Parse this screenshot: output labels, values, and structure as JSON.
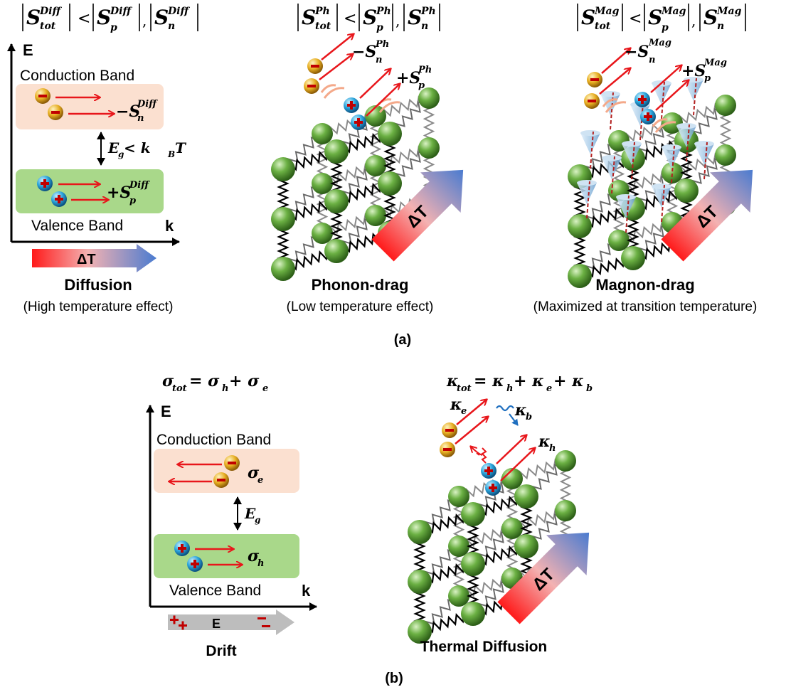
{
  "panel_a": {
    "label": "(a)",
    "diffusion": {
      "eq": {
        "abs1": "S",
        "sub1": "tot",
        "sup": "Diff",
        "rel": "<",
        "abs2": "S",
        "sub2": "p",
        "comma": ",",
        "abs3": "S",
        "sub3": "n"
      },
      "axis_y": "E",
      "axis_x": "k",
      "conduction_band": "Conduction Band",
      "valence_band": "Valence Band",
      "seebeck_n": {
        "sign": "−S",
        "sub": "n",
        "sup": "Diff"
      },
      "seebeck_p": {
        "sign": "+S",
        "sub": "p",
        "sup": "Diff"
      },
      "gap": {
        "base": "E",
        "sub": "g",
        "rel": " < k",
        "sub2": "B",
        "tail": "T"
      },
      "dt": "ΔT",
      "title": "Diffusion",
      "subtitle": "(High temperature effect)"
    },
    "phonon": {
      "eq": {
        "sup": "Ph"
      },
      "seebeck_n": {
        "sign": "−S",
        "sub": "n",
        "sup": "Ph"
      },
      "seebeck_p": {
        "sign": "+S",
        "sub": "p",
        "sup": "Ph"
      },
      "dt": "ΔT",
      "title": "Phonon-drag",
      "subtitle": "(Low temperature effect)"
    },
    "magnon": {
      "eq": {
        "sup": "Mag"
      },
      "seebeck_n": {
        "sign": "−S",
        "sub": "n",
        "sup": "Mag"
      },
      "seebeck_p": {
        "sign": "+S",
        "sub": "p",
        "sup": "Mag"
      },
      "dt": "ΔT",
      "title": "Magnon-drag",
      "subtitle": "(Maximized at transition temperature)"
    }
  },
  "panel_b": {
    "label": "(b)",
    "drift": {
      "eq": {
        "lhs": "σ",
        "lhs_sub": "tot",
        "op1": " = σ",
        "s1": "h",
        "op2": " + σ",
        "s2": "e"
      },
      "axis_y": "E",
      "axis_x": "k",
      "conduction_band": "Conduction Band",
      "valence_band": "Valence Band",
      "sigma_e": {
        "base": "σ",
        "sub": "e"
      },
      "sigma_h": {
        "base": "σ",
        "sub": "h"
      },
      "gap": {
        "base": "E",
        "sub": "g"
      },
      "field": "E",
      "title": "Drift"
    },
    "thermal": {
      "eq": {
        "lhs": "κ",
        "lhs_sub": "tot",
        "op1": " = κ",
        "s1": "h",
        "op2": " + κ",
        "s2": "e",
        "op3": " + κ",
        "s3": "b"
      },
      "kappa_e": {
        "base": "κ",
        "sub": "e"
      },
      "kappa_b": {
        "base": "κ",
        "sub": "b"
      },
      "kappa_h": {
        "base": "κ",
        "sub": "h"
      },
      "dt": "ΔT",
      "title": "Thermal Diffusion"
    }
  },
  "colors": {
    "conduction": "#fbe0d0",
    "valence": "#a9d88a",
    "arrow": "#e8161b",
    "atom": "#5ea33a",
    "electron": "#e9b52a",
    "hole": "#2aa7dd",
    "bluearrow": "#4472c4"
  }
}
